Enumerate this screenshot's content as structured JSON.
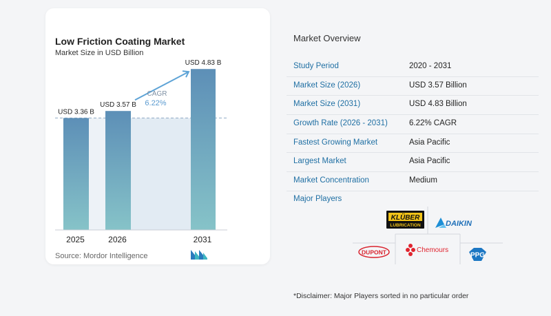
{
  "chart_data": {
    "type": "bar",
    "title": "Low Friction Coating Market",
    "subtitle": "Market Size in USD Billion",
    "categories": [
      "2025",
      "2026",
      "2031"
    ],
    "values": [
      3.36,
      3.57,
      4.83
    ],
    "data_labels": [
      "USD 3.36 B",
      "USD 3.57 B",
      "USD 4.83 B"
    ],
    "ylim": [
      0,
      5
    ],
    "grid": false,
    "cagr_label": "CAGR",
    "cagr_value": "6.22%",
    "bar_color_top": "#5d8fb7",
    "bar_color_bottom": "#86c3c8"
  },
  "source": "Source:  Mordor Intelligence",
  "overview": {
    "title": "Market Overview",
    "rows": [
      {
        "label": "Study Period",
        "value": "2020 - 2031"
      },
      {
        "label": "Market Size (2026)",
        "value": "USD 3.57 Billion"
      },
      {
        "label": "Market Size (2031)",
        "value": "USD 4.83 Billion"
      },
      {
        "label": "Growth Rate (2026 - 2031)",
        "value": "6.22% CAGR"
      },
      {
        "label": "Fastest Growing Market",
        "value": "Asia Pacific"
      },
      {
        "label": "Largest Market",
        "value": "Asia Pacific"
      },
      {
        "label": "Market Concentration",
        "value": "Medium"
      }
    ]
  },
  "players": {
    "title": "Major Players",
    "logos": [
      "KLÜBER",
      "LUBRICATION",
      "DAIKIN",
      "DUPONT",
      "Chemours",
      "PPG"
    ]
  },
  "disclaimer": "*Disclaimer: Major Players sorted in no particular order",
  "colors": {
    "accent": "#1f6fa3",
    "kluber_yellow": "#f2c318",
    "daikin_blue": "#1e8fd6",
    "dupont_red": "#d9232e",
    "chemours_red": "#e0242f",
    "ppg_blue": "#1c77c3"
  }
}
